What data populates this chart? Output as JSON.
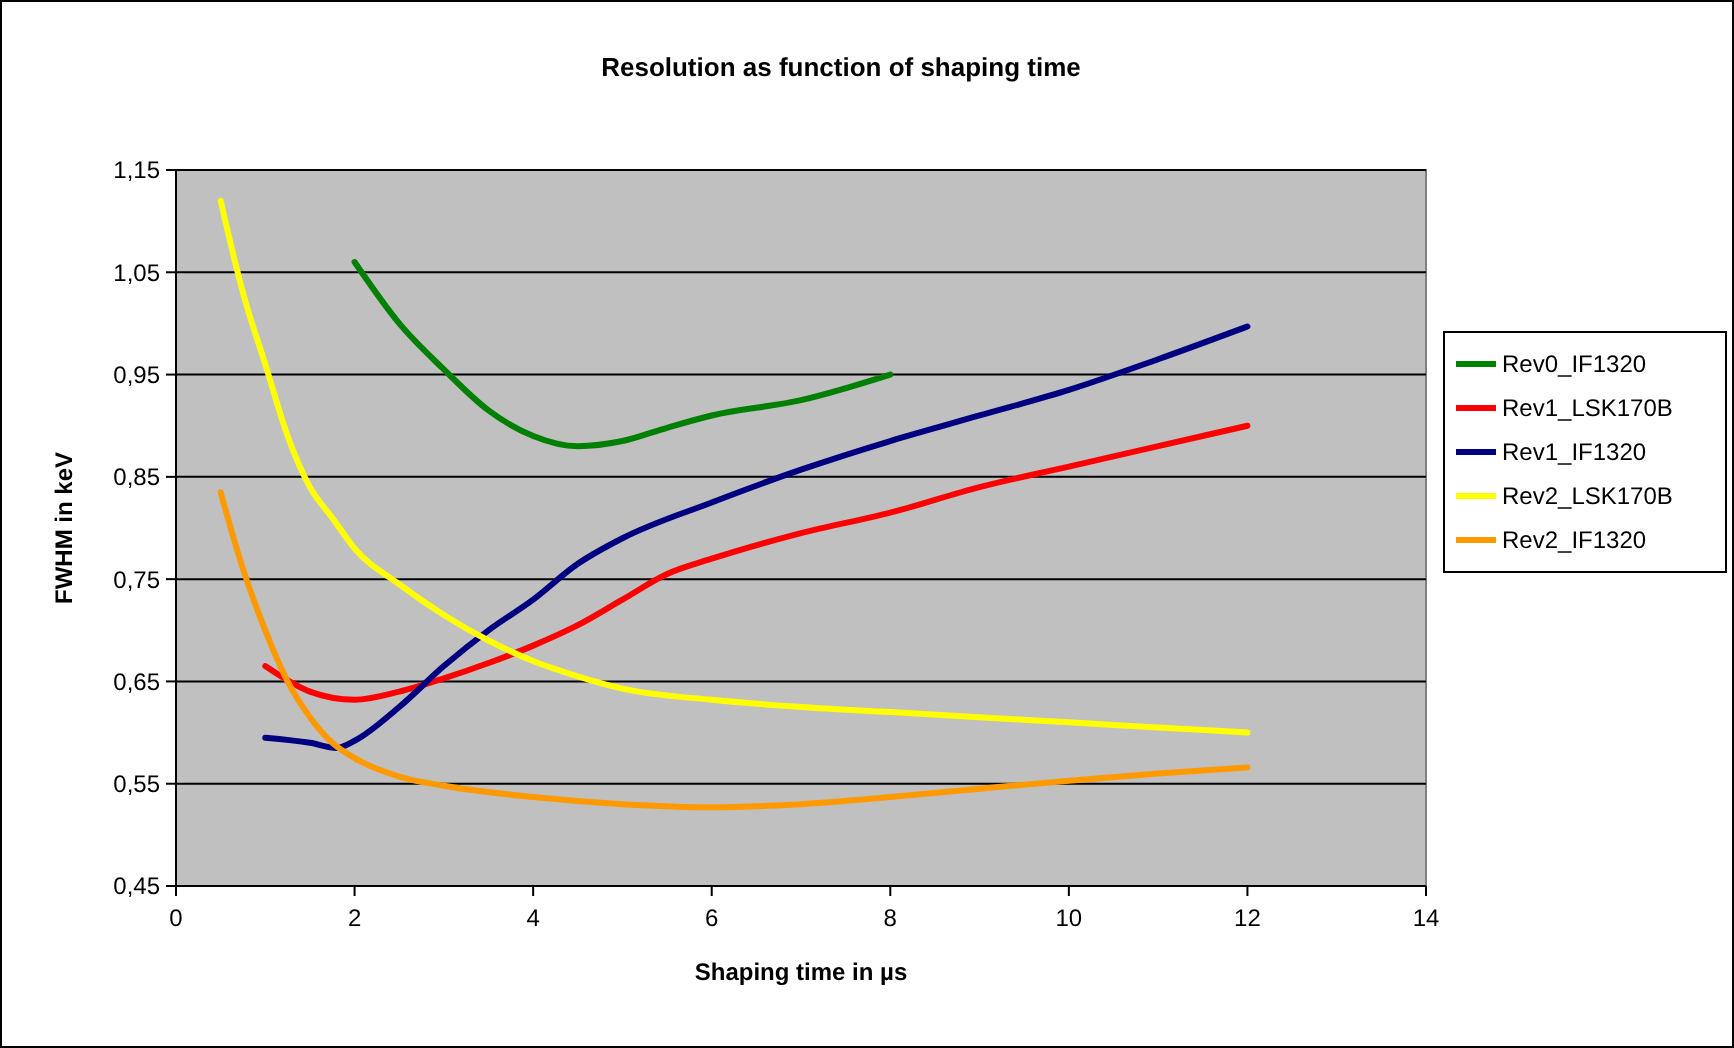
{
  "chart_data": {
    "type": "line",
    "title": "Resolution as function of shaping time",
    "xlabel": "Shaping time in µs",
    "ylabel": "FWHM in keV",
    "xlim": [
      0,
      14
    ],
    "xticks": [
      0,
      2,
      4,
      6,
      8,
      10,
      12,
      14
    ],
    "ylim": [
      0.45,
      1.15
    ],
    "yticks": [
      {
        "value": 0.45,
        "label": "0,45"
      },
      {
        "value": 0.55,
        "label": "0,55"
      },
      {
        "value": 0.65,
        "label": "0,65"
      },
      {
        "value": 0.75,
        "label": "0,75"
      },
      {
        "value": 0.85,
        "label": "0,85"
      },
      {
        "value": 0.95,
        "label": "0,95"
      },
      {
        "value": 1.05,
        "label": "1,05"
      },
      {
        "value": 1.15,
        "label": "1,15"
      }
    ],
    "grid": "y",
    "legend": "right",
    "marker": "none",
    "line_style": "solid",
    "series": [
      {
        "name": "Rev0_IF1320",
        "color": "#008000",
        "x": [
          2,
          2.5,
          3,
          3.5,
          4,
          4.5,
          5,
          5.5,
          6,
          7,
          8
        ],
        "values": [
          1.06,
          1.0,
          0.955,
          0.915,
          0.89,
          0.88,
          0.885,
          0.898,
          0.91,
          0.925,
          0.95
        ]
      },
      {
        "name": "Rev1_LSK170B",
        "color": "#ff0000",
        "x": [
          1,
          1.5,
          2,
          2.5,
          3,
          3.5,
          4,
          4.5,
          5,
          5.5,
          6,
          7,
          8,
          9,
          10,
          11,
          12
        ],
        "values": [
          0.665,
          0.64,
          0.632,
          0.64,
          0.653,
          0.668,
          0.685,
          0.705,
          0.73,
          0.755,
          0.77,
          0.795,
          0.815,
          0.84,
          0.86,
          0.88,
          0.9
        ]
      },
      {
        "name": "Rev1_IF1320",
        "color": "#000080",
        "x": [
          1,
          1.5,
          1.8,
          2,
          2.5,
          3,
          3.5,
          4,
          4.5,
          5,
          6,
          7,
          8,
          9,
          10,
          11,
          12
        ],
        "values": [
          0.595,
          0.59,
          0.585,
          0.592,
          0.625,
          0.665,
          0.7,
          0.73,
          0.765,
          0.79,
          0.825,
          0.857,
          0.885,
          0.91,
          0.935,
          0.965,
          0.997
        ]
      },
      {
        "name": "Rev2_LSK170B",
        "color": "#ffff00",
        "x": [
          0.5,
          0.75,
          1,
          1.25,
          1.5,
          1.75,
          2,
          2.5,
          3,
          3.5,
          4,
          4.5,
          5,
          6,
          7,
          8,
          9,
          10,
          11,
          12
        ],
        "values": [
          1.12,
          1.03,
          0.96,
          0.89,
          0.84,
          0.81,
          0.78,
          0.745,
          0.715,
          0.69,
          0.67,
          0.655,
          0.643,
          0.632,
          0.625,
          0.62,
          0.615,
          0.61,
          0.605,
          0.6
        ]
      },
      {
        "name": "Rev2_IF1320",
        "color": "#ff9900",
        "x": [
          0.5,
          0.75,
          1,
          1.25,
          1.5,
          1.75,
          2,
          2.5,
          3,
          4,
          5,
          6,
          7,
          8,
          9,
          10,
          11,
          12
        ],
        "values": [
          0.835,
          0.76,
          0.7,
          0.65,
          0.615,
          0.59,
          0.575,
          0.557,
          0.548,
          0.537,
          0.53,
          0.527,
          0.53,
          0.537,
          0.545,
          0.553,
          0.56,
          0.566
        ]
      }
    ]
  }
}
